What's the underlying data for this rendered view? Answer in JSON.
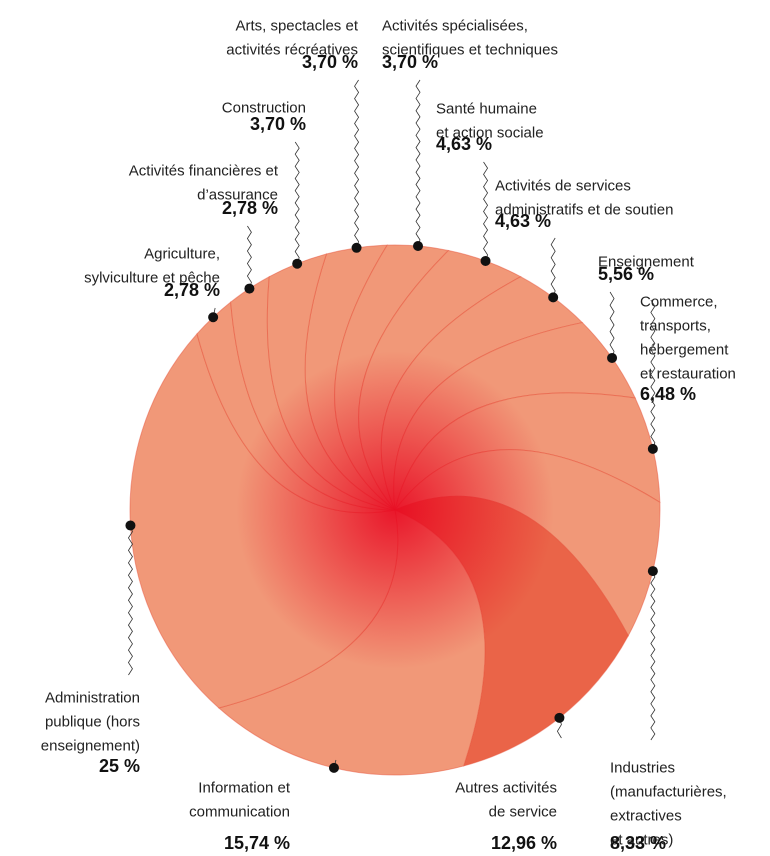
{
  "chart_data": {
    "type": "pie",
    "categories": [
      [
        "Arts, spectacles et",
        "activités récréatives"
      ],
      [
        "Activités spécialisées,",
        "scientifiques et techniques"
      ],
      [
        "Santé humaine",
        "et action sociale"
      ],
      [
        "Activités de services",
        "administratifs et de soutien"
      ],
      [
        "Enseignement"
      ],
      [
        "Commerce,",
        "transports,",
        "hébergement",
        "et restauration"
      ],
      [
        "Industries",
        "(manufacturières,",
        "extractives",
        "et autres)"
      ],
      [
        "Autres activités",
        "de service"
      ],
      [
        "Information et",
        "communication"
      ],
      [
        "Administration",
        "publique (hors",
        "enseignement)"
      ],
      [
        "Agriculture,",
        "sylviculture et pêche"
      ],
      [
        "Activités financières et",
        "d’assurance"
      ],
      [
        "Construction"
      ]
    ],
    "values": [
      3.7,
      3.7,
      4.63,
      4.63,
      5.56,
      6.48,
      8.33,
      12.96,
      15.74,
      25,
      2.78,
      2.78,
      3.7
    ],
    "value_labels": [
      "3,70 %",
      "3,70 %",
      "4,63 %",
      "4,63 %",
      "5,56 %",
      "6,48 %",
      "8,33 %",
      "12,96 %",
      "15,74 %",
      "25 %",
      "2,78 %",
      "2,78 %",
      "3,70 %"
    ],
    "colors": [
      "#f19878",
      "#f19878",
      "#f19878",
      "#f19878",
      "#f19878",
      "#f19878",
      "#f19878",
      "#ea6448",
      "#f19878",
      "#f19878",
      "#f19878",
      "#f19878",
      "#f19878"
    ]
  }
}
